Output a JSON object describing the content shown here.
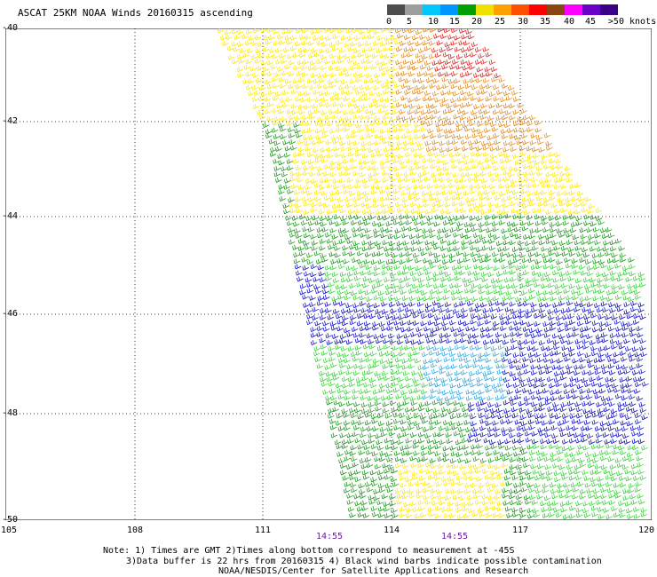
{
  "title": "ASCAT 25KM NOAA Winds 20160315 ascending",
  "speed_scale": {
    "labels": [
      "0",
      "5",
      "10",
      "15",
      "20",
      "25",
      "30",
      "35",
      "40",
      "45",
      ">50 knots"
    ],
    "colors": [
      "#4d4d4d",
      "#9e9e9e",
      "#00c8ff",
      "#0096ff",
      "#00a000",
      "#f0e000",
      "#ffa000",
      "#ff5000",
      "#ff0000",
      "#8b4513",
      "#ff00ff",
      "#6a00c8",
      "#3a008a"
    ]
  },
  "map": {
    "lat_labels": [
      "-40",
      "-42",
      "-44",
      "-46",
      "-48",
      "-50"
    ],
    "lon_labels": [
      "105",
      "108",
      "111",
      "114",
      "117",
      "120"
    ],
    "time_labels": [
      "14:55",
      "14:55"
    ]
  },
  "notes": {
    "line1": "Note: 1) Times are GMT 2)Times along bottom correspond to measurement at -45S",
    "line2": "3)Data buffer is 22 hrs from 20160315 4) Black wind barbs indicate possible contamination",
    "line3": "NOAA/NESDIS/Center for Satellite Applications and Research"
  },
  "barb_colors": {
    "orange": "#e08a1e",
    "yellow": "#ffe800",
    "green": "#1e9a1e",
    "light_green": "#3cd23c",
    "blue": "#1010c8",
    "cyan": "#2ea8e0",
    "red": "#e02020"
  }
}
